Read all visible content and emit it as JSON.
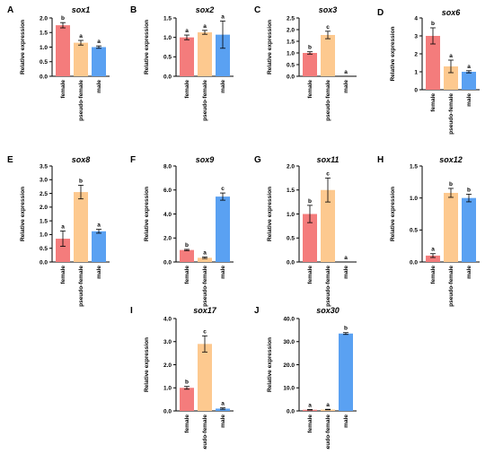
{
  "colors": {
    "female": "#f47c7c",
    "pseudo_female": "#fdc98f",
    "male": "#5aa1f2",
    "axis": "#000000"
  },
  "chart_data": [
    {
      "type": "bar",
      "panel_label": "A",
      "title": "sox1",
      "ylabel": "Relative expression",
      "categories": [
        "female",
        "pseudo-female",
        "male"
      ],
      "values": [
        1.75,
        1.15,
        1.0
      ],
      "errors": [
        0.09,
        0.08,
        0.04
      ],
      "letters": [
        "b",
        "a",
        "a"
      ],
      "ylim": [
        0,
        2.0
      ],
      "yticks": [
        0,
        0.5,
        1.0,
        1.5,
        2.0
      ],
      "ytick_labels": [
        "0.0",
        "0.5",
        "1.0",
        "1.5",
        "2.0"
      ]
    },
    {
      "type": "bar",
      "panel_label": "B",
      "title": "sox2",
      "ylabel": "Relative expression",
      "categories": [
        "female",
        "pseudo-female",
        "male"
      ],
      "values": [
        1.0,
        1.13,
        1.07
      ],
      "errors": [
        0.06,
        0.05,
        0.35
      ],
      "letters": [
        "a",
        "a",
        "a"
      ],
      "ylim": [
        0,
        1.5
      ],
      "yticks": [
        0,
        0.5,
        1.0,
        1.5
      ],
      "ytick_labels": [
        "0.0",
        "0.5",
        "1.0",
        "1.5"
      ]
    },
    {
      "type": "bar",
      "panel_label": "C",
      "title": "sox3",
      "ylabel": "Relative expression",
      "categories": [
        "female",
        "pseudo-female",
        "male"
      ],
      "values": [
        1.0,
        1.77,
        0.0
      ],
      "errors": [
        0.05,
        0.16,
        0
      ],
      "letters": [
        "b",
        "c",
        "a"
      ],
      "ylim": [
        0,
        2.5
      ],
      "yticks": [
        0,
        0.5,
        1.0,
        1.5,
        2.0,
        2.5
      ],
      "ytick_labels": [
        "0.0",
        "0.5",
        "1.0",
        "1.5",
        "2.0",
        "2.5"
      ]
    },
    {
      "type": "bar",
      "panel_label": "D",
      "title": "sox6",
      "ylabel": "Relative expression",
      "categories": [
        "female",
        "pseudo-female",
        "male"
      ],
      "values": [
        3.0,
        1.3,
        1.0
      ],
      "errors": [
        0.45,
        0.35,
        0.06
      ],
      "letters": [
        "b",
        "a",
        "a"
      ],
      "ylim": [
        0,
        4
      ],
      "yticks": [
        0,
        1,
        2,
        3,
        4
      ],
      "ytick_labels": [
        "0",
        "1",
        "2",
        "3",
        "4"
      ]
    },
    {
      "type": "bar",
      "panel_label": "E",
      "title": "sox8",
      "ylabel": "Relative expression",
      "categories": [
        "female",
        "pseudo-female",
        "male"
      ],
      "values": [
        0.85,
        2.55,
        1.12
      ],
      "errors": [
        0.28,
        0.25,
        0.07
      ],
      "letters": [
        "a",
        "b",
        "a"
      ],
      "ylim": [
        0,
        3.5
      ],
      "yticks": [
        0,
        0.5,
        1.0,
        1.5,
        2.0,
        2.5,
        3.0,
        3.5
      ],
      "ytick_labels": [
        "0.0",
        "0.5",
        "1.0",
        "1.5",
        "2.0",
        "2.5",
        "3.0",
        "3.5"
      ]
    },
    {
      "type": "bar",
      "panel_label": "F",
      "title": "sox9",
      "ylabel": "Relative expression",
      "categories": [
        "female",
        "pseudo-female",
        "male"
      ],
      "values": [
        1.0,
        0.35,
        5.45
      ],
      "errors": [
        0.05,
        0.06,
        0.3
      ],
      "letters": [
        "b",
        "a",
        "c"
      ],
      "ylim": [
        0,
        8.0
      ],
      "yticks": [
        0,
        2,
        4,
        6,
        8
      ],
      "ytick_labels": [
        "0.0",
        "2.0",
        "4.0",
        "6.0",
        "8.0"
      ]
    },
    {
      "type": "bar",
      "panel_label": "G",
      "title": "sox11",
      "ylabel": "Relative expression",
      "categories": [
        "female",
        "pseudo-female",
        "male"
      ],
      "values": [
        1.0,
        1.5,
        0.0
      ],
      "errors": [
        0.18,
        0.25,
        0
      ],
      "letters": [
        "b",
        "c",
        "a"
      ],
      "ylim": [
        0,
        2.0
      ],
      "yticks": [
        0,
        0.5,
        1.0,
        1.5,
        2.0
      ],
      "ytick_labels": [
        "0.0",
        "0.5",
        "1.0",
        "1.5",
        "2.0"
      ]
    },
    {
      "type": "bar",
      "panel_label": "H",
      "title": "sox12",
      "ylabel": "Relative expression",
      "categories": [
        "female",
        "pseudo-female",
        "male"
      ],
      "values": [
        0.1,
        1.08,
        1.0
      ],
      "errors": [
        0.03,
        0.07,
        0.06
      ],
      "letters": [
        "a",
        "b",
        "b"
      ],
      "ylim": [
        0,
        1.5
      ],
      "yticks": [
        0,
        0.5,
        1.0,
        1.5
      ],
      "ytick_labels": [
        "0.0",
        "0.5",
        "1.0",
        "1.5"
      ]
    },
    {
      "type": "bar",
      "panel_label": "I",
      "title": "sox17",
      "ylabel": "Relative expression",
      "categories": [
        "female",
        "pseudo-female",
        "male"
      ],
      "values": [
        1.0,
        2.9,
        0.1
      ],
      "errors": [
        0.06,
        0.35,
        0.03
      ],
      "letters": [
        "b",
        "c",
        "a"
      ],
      "ylim": [
        0,
        4.0
      ],
      "yticks": [
        0,
        1,
        2,
        3,
        4
      ],
      "ytick_labels": [
        "0.0",
        "1.0",
        "2.0",
        "3.0",
        "4.0"
      ]
    },
    {
      "type": "bar",
      "panel_label": "J",
      "title": "sox30",
      "ylabel": "Relative expression",
      "categories": [
        "female",
        "pseudo-female",
        "male"
      ],
      "values": [
        0.5,
        0.6,
        33.5
      ],
      "errors": [
        0.1,
        0.1,
        0.4
      ],
      "letters": [
        "a",
        "a",
        "b"
      ],
      "ylim": [
        0,
        40.0
      ],
      "yticks": [
        0,
        10,
        20,
        30,
        40
      ],
      "ytick_labels": [
        "0.0",
        "10.0",
        "20.0",
        "30.0",
        "40.0"
      ]
    }
  ]
}
